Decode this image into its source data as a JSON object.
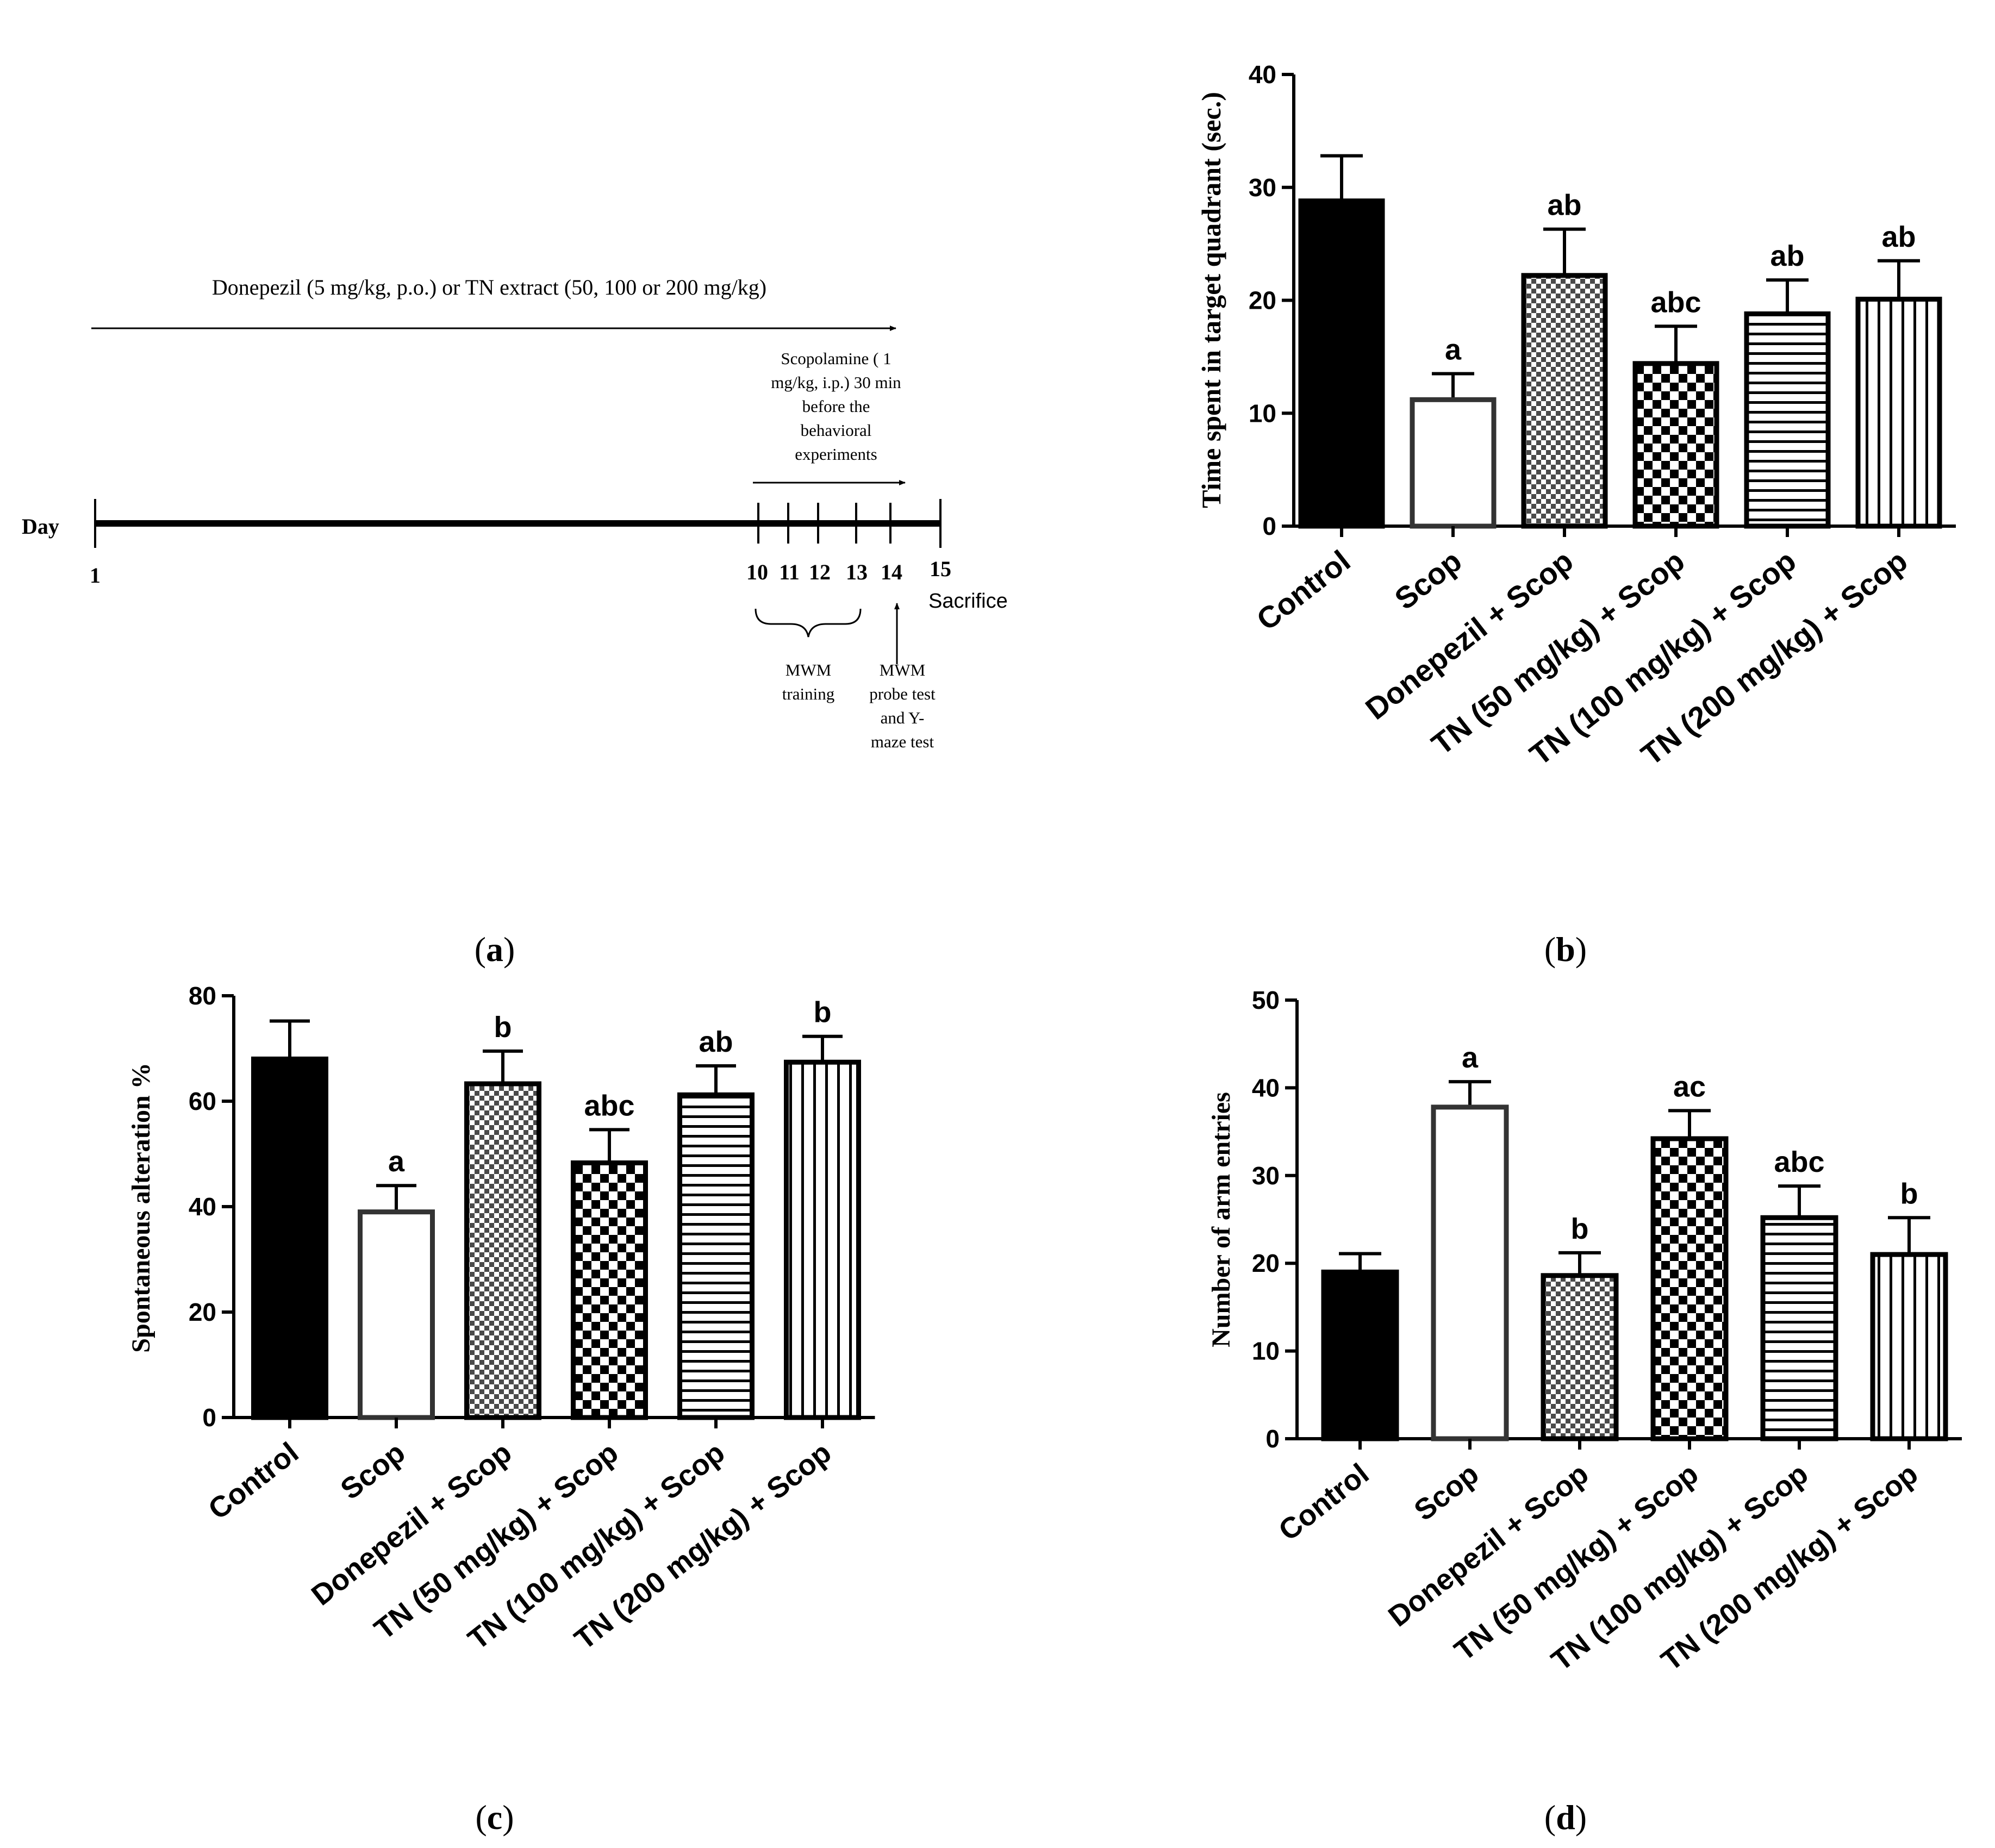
{
  "colors": {
    "ink": "#000000",
    "open_bar": "#333333",
    "background": "#ffffff"
  },
  "panel_labels": {
    "a": "a",
    "b": "b",
    "c": "c",
    "d": "d"
  },
  "timeline": {
    "treatment_label": "Donepezil (5 mg/kg, p.o.) or TN extract (50, 100 or 200 mg/kg)",
    "scopolamine_label": [
      "Scopolamine ( 1",
      "mg/kg, i.p.) 30 min",
      "before the",
      "behavioral",
      "experiments"
    ],
    "day_label": "Day",
    "day_ticks": [
      "1",
      "10",
      "11",
      "12",
      "13",
      "14",
      "15"
    ],
    "sacrifice_label": "Sacrifice",
    "training_label": [
      "MWM",
      "training"
    ],
    "probe_label": [
      "MWM",
      "probe test",
      "and Y-",
      "maze test"
    ]
  },
  "chart_data": [
    {
      "id": "b",
      "type": "bar",
      "title": "",
      "xlabel": "",
      "ylabel": "Time spent in target quadrant (sec.)",
      "ylim": [
        0,
        40
      ],
      "yticks": [
        0,
        10,
        20,
        30,
        40
      ],
      "ytick_labels": [
        "0",
        "10",
        "20",
        "30",
        "40"
      ],
      "categories": [
        "Control",
        "Scop",
        "Donepezil + Scop",
        "TN (50 mg/kg) + Scop",
        "TN (100 mg/kg) + Scop",
        "TN (200 mg/kg) + Scop"
      ],
      "values": [
        28.8,
        11.2,
        22.2,
        14.4,
        18.8,
        20.1
      ],
      "errors": [
        4.0,
        2.3,
        4.1,
        3.3,
        3.0,
        3.4
      ],
      "annotations": [
        "",
        "a",
        "ab",
        "abc",
        "ab",
        "ab"
      ],
      "patterns": [
        "solid",
        "open",
        "fine-check",
        "checker",
        "horizontal",
        "vertical"
      ]
    },
    {
      "id": "c",
      "type": "bar",
      "title": "",
      "xlabel": "",
      "ylabel": "Spontaneous alteration %",
      "ylim": [
        0,
        80
      ],
      "yticks": [
        0,
        20,
        40,
        60,
        80
      ],
      "ytick_labels": [
        "0",
        "20",
        "40",
        "60",
        "80"
      ],
      "categories": [
        "Control",
        "Scop",
        "Donepezil + Scop",
        "TN (50 mg/kg) + Scop",
        "TN (100 mg/kg) + Scop",
        "TN (200 mg/kg) + Scop"
      ],
      "values": [
        68.0,
        39.0,
        63.3,
        48.3,
        61.2,
        67.4
      ],
      "errors": [
        7.2,
        5.0,
        6.2,
        6.3,
        5.5,
        4.9
      ],
      "annotations": [
        "",
        "a",
        "b",
        "abc",
        "ab",
        "b"
      ],
      "patterns": [
        "solid",
        "open",
        "fine-check",
        "checker",
        "horizontal",
        "vertical"
      ]
    },
    {
      "id": "d",
      "type": "bar",
      "title": "",
      "xlabel": "",
      "ylabel": "Number of arm entries",
      "ylim": [
        0,
        50
      ],
      "yticks": [
        0,
        10,
        20,
        30,
        40,
        50
      ],
      "ytick_labels": [
        "0",
        "10",
        "20",
        "30",
        "40",
        "50"
      ],
      "categories": [
        "Control",
        "Scop",
        "Donepezil + Scop",
        "TN (50 mg/kg) + Scop",
        "TN (100 mg/kg) + Scop",
        "TN (200 mg/kg) + Scop"
      ],
      "values": [
        19.0,
        37.8,
        18.6,
        34.2,
        25.2,
        21.0
      ],
      "errors": [
        2.1,
        2.9,
        2.6,
        3.2,
        3.6,
        4.2
      ],
      "annotations": [
        "",
        "a",
        "b",
        "ac",
        "abc",
        "b"
      ],
      "patterns": [
        "solid",
        "open",
        "fine-check",
        "checker",
        "horizontal",
        "vertical"
      ]
    }
  ]
}
